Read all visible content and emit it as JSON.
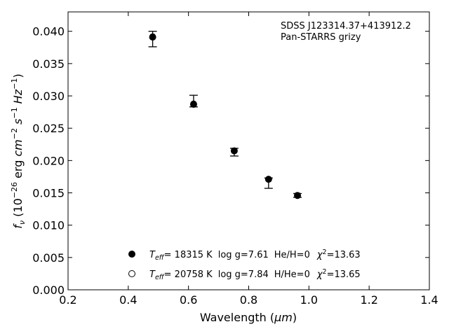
{
  "chart_data": {
    "type": "scatter",
    "xlabel": "Wavelength (",
    "xlabel_symbol": "μm",
    "xlabel_close": ")",
    "ylabel_parts": {
      "f": "f",
      "nu": "ν",
      "paren_open": " (10",
      "exp1": "−26",
      "erg": " erg ",
      "cm": "cm",
      "exp2": "−2",
      "s": " s",
      "exp3": "−1",
      "hz": " Hz",
      "exp4": "−1",
      "paren_close": ")"
    },
    "xlim": [
      0.2,
      1.4
    ],
    "ylim": [
      0.0,
      0.043
    ],
    "xticks": [
      0.2,
      0.4,
      0.6,
      0.8,
      1.0,
      1.2,
      1.4
    ],
    "xtick_labels": [
      "0.2",
      "0.4",
      "0.6",
      "0.8",
      "1.0",
      "1.2",
      "1.4"
    ],
    "yticks": [
      0.0,
      0.005,
      0.01,
      0.015,
      0.02,
      0.025,
      0.03,
      0.035,
      0.04
    ],
    "ytick_labels": [
      "0.000",
      "0.005",
      "0.010",
      "0.015",
      "0.020",
      "0.025",
      "0.030",
      "0.035",
      "0.040"
    ],
    "grid": false,
    "annotation_lines": [
      "SDSS J123314.37+413912.2",
      "Pan-STARRS grizy"
    ],
    "observed": {
      "x": [
        0.481,
        0.617,
        0.752,
        0.866,
        0.962
      ],
      "y": [
        0.0388,
        0.0292,
        0.0213,
        0.0165,
        0.0146
      ],
      "yerr": [
        0.0012,
        0.0009,
        0.0006,
        0.0008,
        0.0003
      ]
    },
    "models": [
      {
        "marker": "filled",
        "x": [
          0.481,
          0.617,
          0.752,
          0.866,
          0.962
        ],
        "y": [
          0.0391,
          0.0287,
          0.0215,
          0.0171,
          0.0146
        ]
      },
      {
        "marker": "open",
        "x": [
          0.481,
          0.617,
          0.752,
          0.866,
          0.962
        ],
        "y": [
          0.0392,
          0.0288,
          0.0215,
          0.0171,
          0.0146
        ]
      }
    ],
    "legend_position": "lower-center",
    "legend": [
      {
        "marker": "filled",
        "teff_T": "T",
        "teff_sub": "eff",
        "teff_value": "= 18315 K",
        "logg": "log g=7.61",
        "composition": "He/H=0",
        "chi_symbol": "χ",
        "chi_exp": "2",
        "chi_value": "=13.63"
      },
      {
        "marker": "open",
        "teff_T": "T",
        "teff_sub": "eff",
        "teff_value": "= 20758 K",
        "logg": "log g=7.84",
        "composition": "H/He=0",
        "chi_symbol": "χ",
        "chi_exp": "2",
        "chi_value": "=13.65"
      }
    ],
    "colors": {
      "axes": "#000000",
      "markers": "#000000",
      "background": "#ffffff"
    }
  }
}
